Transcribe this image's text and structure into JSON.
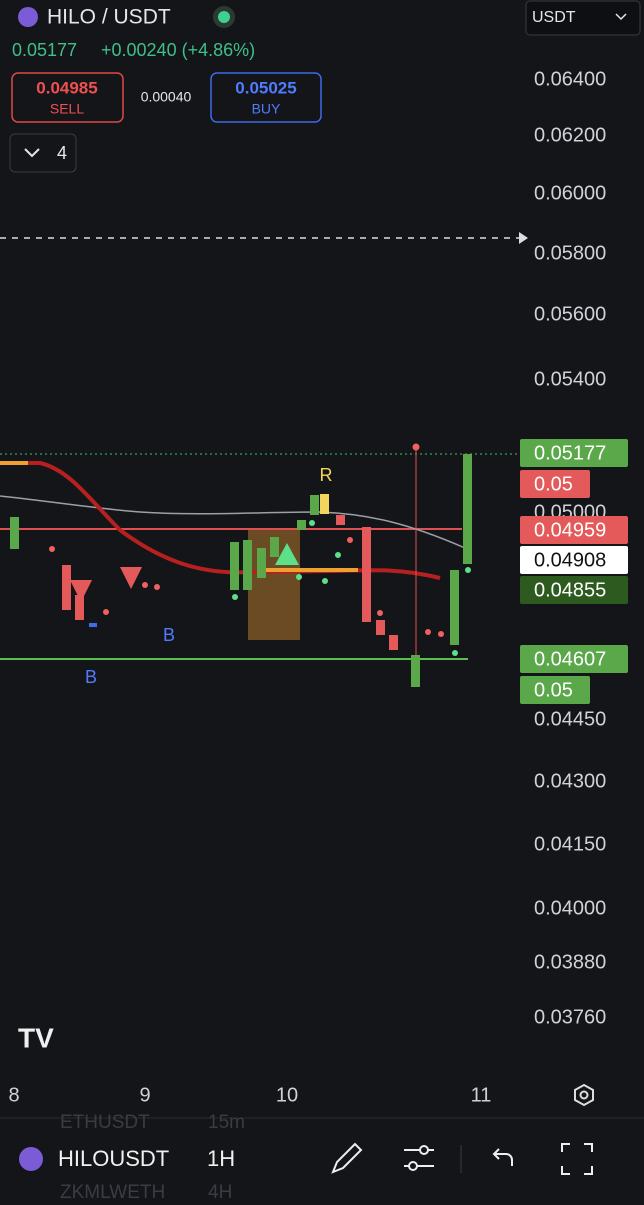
{
  "header": {
    "pair": "HILO / USDT",
    "price": "0.05177",
    "change": "+0.00240 (+4.86%)",
    "currency": "USDT"
  },
  "order": {
    "sell_price": "0.04985",
    "sell_label": "SELL",
    "spread": "0.00040",
    "buy_price": "0.05025",
    "buy_label": "BUY"
  },
  "indicator_count": "4",
  "price_axis": [
    "0.06400",
    "0.06200",
    "0.06000",
    "0.05800",
    "0.05600",
    "0.05400",
    "0.05000",
    "0.04450",
    "0.04300",
    "0.04150",
    "0.04000",
    "0.03880",
    "0.03760"
  ],
  "price_badges": [
    "0.05177",
    "0.05",
    "0.04959",
    "0.04908",
    "0.04855",
    "0.04607",
    "0.05"
  ],
  "chart_labels": [
    "R",
    "B",
    "B"
  ],
  "time_axis": [
    "8",
    "9",
    "10",
    "11"
  ],
  "background_list": [
    "ETHUSDT",
    "15m",
    "ZKMLWETH",
    "4H"
  ],
  "bottom_bar": {
    "symbol": "HILOUSDT",
    "interval": "1H"
  }
}
